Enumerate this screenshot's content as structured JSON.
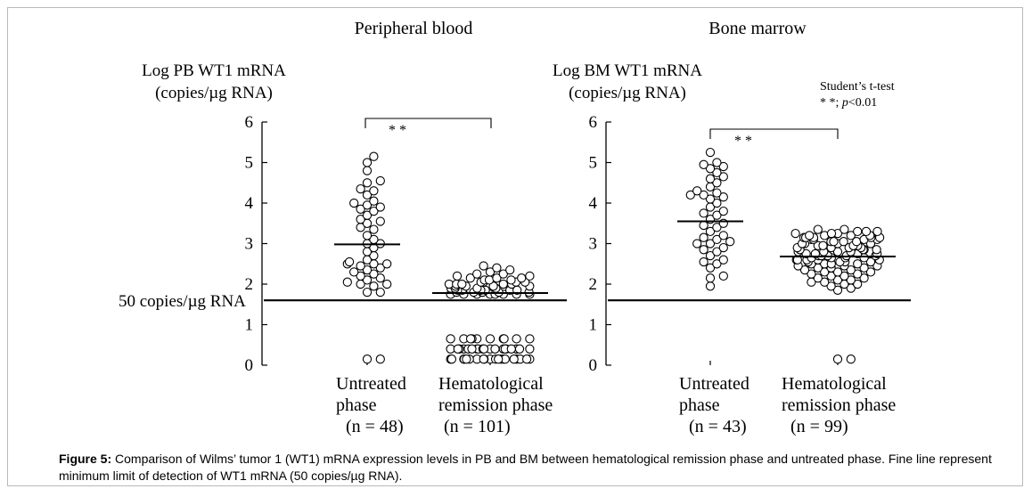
{
  "caption": {
    "label": "Figure 5:",
    "text": "Comparison of Wilms’ tumor 1 (WT1) mRNA expression levels in PB and BM between hematological remission phase and untreated phase. Fine line represent minimum limit of detection of WT1 mRNA (50 copies/µg RNA)."
  },
  "chart_data": [
    {
      "type": "scatter",
      "title": "Peripheral blood",
      "ylabel": [
        "Log PB WT1 mRNA",
        "(copies/µg RNA)"
      ],
      "ylim": [
        0,
        6
      ],
      "yticks": [
        "0",
        "1",
        "2",
        "3",
        "4",
        "5",
        "6"
      ],
      "threshold": {
        "value": 1.6,
        "label": "50 copies/µg RNA"
      },
      "significance": "* *",
      "groups": [
        {
          "name": "Untreated phase",
          "label_lines": [
            "Untreated",
            "phase"
          ],
          "n_label": "(n = 48)",
          "mean": 2.98,
          "values": [
            0.15,
            0.15,
            1.8,
            1.8,
            1.95,
            2.0,
            2.0,
            2.05,
            2.1,
            2.15,
            2.2,
            2.25,
            2.3,
            2.35,
            2.4,
            2.45,
            2.5,
            2.5,
            2.5,
            2.55,
            2.6,
            2.7,
            2.8,
            2.9,
            3.0,
            3.0,
            3.1,
            3.2,
            3.35,
            3.4,
            3.5,
            3.55,
            3.6,
            3.7,
            3.8,
            3.85,
            3.9,
            3.95,
            4.0,
            4.05,
            4.2,
            4.3,
            4.35,
            4.5,
            4.55,
            4.8,
            5.0,
            5.15
          ]
        },
        {
          "name": "Hematological remission phase",
          "label_lines": [
            "Hematological",
            "remission phase"
          ],
          "n_label": "(n = 101)",
          "mean": 1.78,
          "values": [
            0.15,
            0.15,
            0.15,
            0.15,
            0.15,
            0.15,
            0.15,
            0.15,
            0.15,
            0.15,
            0.15,
            0.15,
            0.15,
            0.15,
            0.15,
            0.15,
            0.15,
            0.15,
            0.15,
            0.15,
            0.4,
            0.4,
            0.4,
            0.4,
            0.4,
            0.4,
            0.4,
            0.4,
            0.4,
            0.4,
            0.4,
            0.4,
            0.4,
            0.4,
            0.4,
            0.4,
            0.4,
            0.4,
            0.4,
            0.4,
            0.65,
            0.65,
            0.65,
            0.65,
            0.65,
            0.65,
            0.65,
            0.65,
            0.65,
            0.65,
            1.75,
            1.75,
            1.75,
            1.75,
            1.75,
            1.75,
            1.75,
            1.75,
            1.8,
            1.8,
            1.8,
            1.8,
            1.8,
            1.8,
            1.85,
            1.85,
            1.85,
            1.85,
            1.85,
            1.85,
            1.9,
            1.9,
            1.9,
            1.9,
            1.95,
            1.95,
            1.95,
            1.95,
            2.0,
            2.0,
            2.0,
            2.0,
            2.0,
            2.05,
            2.05,
            2.05,
            2.05,
            2.1,
            2.1,
            2.1,
            2.15,
            2.15,
            2.15,
            2.2,
            2.2,
            2.25,
            2.25,
            2.3,
            2.35,
            2.4,
            2.45
          ]
        }
      ]
    },
    {
      "type": "scatter",
      "title": "Bone marrow",
      "ylabel": [
        "Log BM WT1 mRNA",
        "(copies/µg RNA)"
      ],
      "ylim": [
        0,
        6
      ],
      "yticks": [
        "0",
        "1",
        "2",
        "3",
        "4",
        "5",
        "6"
      ],
      "threshold": {
        "value": 1.6,
        "label": ""
      },
      "significance": "* *",
      "test_note": {
        "line1": "Student’s t-test",
        "line2_prefix": "* *; ",
        "line2_italic": "p",
        "line2_suffix": "<0.01"
      },
      "groups": [
        {
          "name": "Untreated phase",
          "label_lines": [
            "Untreated",
            "phase"
          ],
          "n_label": "(n = 43)",
          "mean": 3.55,
          "values": [
            1.95,
            2.15,
            2.2,
            2.4,
            2.5,
            2.55,
            2.6,
            2.7,
            2.8,
            2.85,
            2.9,
            3.0,
            3.0,
            3.05,
            3.1,
            3.15,
            3.2,
            3.3,
            3.4,
            3.45,
            3.5,
            3.6,
            3.7,
            3.75,
            3.8,
            3.9,
            4.0,
            4.1,
            4.15,
            4.2,
            4.2,
            4.25,
            4.3,
            4.4,
            4.5,
            4.6,
            4.65,
            4.75,
            4.85,
            4.9,
            4.95,
            5.0,
            5.25
          ]
        },
        {
          "name": "Hematological remission phase",
          "label_lines": [
            "Hematological",
            "remission phase"
          ],
          "n_label": "(n = 99)",
          "mean": 2.68,
          "values": [
            0.15,
            0.15,
            1.85,
            1.9,
            1.95,
            2.0,
            2.0,
            2.05,
            2.05,
            2.1,
            2.1,
            2.15,
            2.15,
            2.2,
            2.2,
            2.25,
            2.25,
            2.3,
            2.3,
            2.3,
            2.35,
            2.35,
            2.4,
            2.4,
            2.4,
            2.45,
            2.45,
            2.45,
            2.5,
            2.5,
            2.5,
            2.5,
            2.55,
            2.55,
            2.55,
            2.55,
            2.6,
            2.6,
            2.6,
            2.6,
            2.6,
            2.65,
            2.65,
            2.65,
            2.65,
            2.7,
            2.7,
            2.7,
            2.7,
            2.7,
            2.75,
            2.75,
            2.75,
            2.75,
            2.8,
            2.8,
            2.8,
            2.8,
            2.85,
            2.85,
            2.85,
            2.85,
            2.9,
            2.9,
            2.9,
            2.9,
            2.95,
            2.95,
            2.95,
            2.95,
            3.0,
            3.0,
            3.0,
            3.0,
            3.05,
            3.05,
            3.05,
            3.05,
            3.1,
            3.1,
            3.1,
            3.1,
            3.15,
            3.15,
            3.15,
            3.15,
            3.15,
            3.2,
            3.2,
            3.2,
            3.2,
            3.25,
            3.25,
            3.25,
            3.3,
            3.3,
            3.3,
            3.35,
            3.35
          ]
        }
      ]
    }
  ]
}
